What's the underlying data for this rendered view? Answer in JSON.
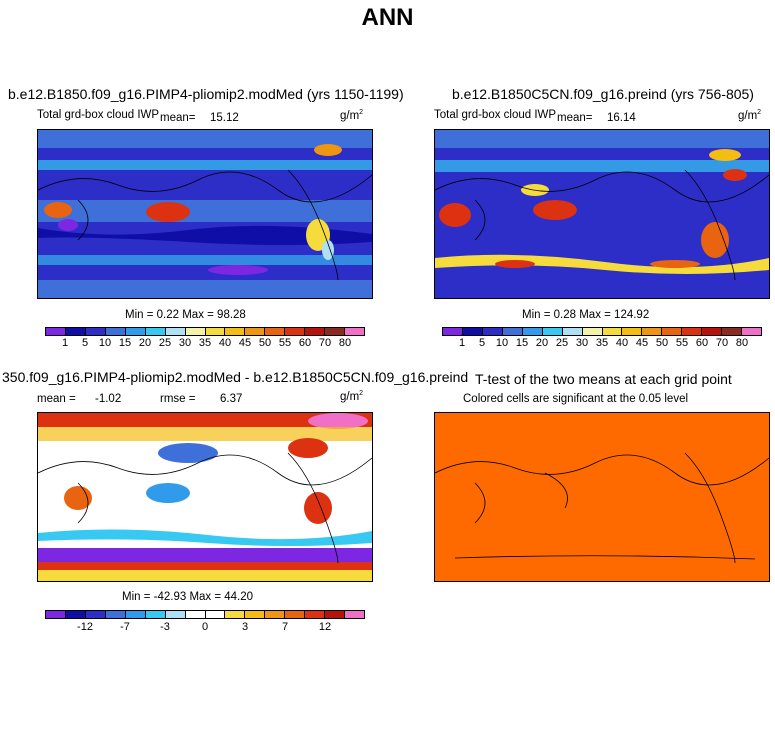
{
  "title": "ANN",
  "units": "g/m",
  "units_sup": "2",
  "colors": {
    "seq": [
      "#7d27e3",
      "#0f0fa8",
      "#2d2dc8",
      "#3f6fd8",
      "#2f9bea",
      "#37c9f2",
      "#aee0f4",
      "#f2f2a8",
      "#f5dc3c",
      "#f3bd12",
      "#ee9612",
      "#e86410",
      "#dc3212",
      "#b8120c",
      "#8c2a20",
      "#f070c8"
    ],
    "div": [
      "#7d27e3",
      "#0f0fa8",
      "#2d2dc8",
      "#3f6fd8",
      "#2f9bea",
      "#37c9f2",
      "#aee0f4",
      "#ffffff",
      "#ffffff",
      "#f5dc3c",
      "#f3bd12",
      "#ee9612",
      "#e86410",
      "#dc3212",
      "#b8120c",
      "#f070c8"
    ],
    "ttest": "#ff6a00"
  },
  "chart_data": [
    {
      "type": "heatmap",
      "title": "b.e12.B1850.f09_g16.PIMP4-pliomip2.modMed (yrs 1150-1199)",
      "subtitle": "Total grd-box cloud IWP",
      "mean_label": "mean=",
      "mean": "15.12",
      "stats_label": "Min =    0.22  Max =   98.28",
      "min": 0.22,
      "max": 98.28,
      "colorbar_labels": [
        "1",
        "5",
        "10",
        "15",
        "20",
        "25",
        "30",
        "35",
        "40",
        "45",
        "50",
        "55",
        "60",
        "70",
        "80"
      ]
    },
    {
      "type": "heatmap",
      "title": "b.e12.B1850C5CN.f09_g16.preind (yrs 756-805)",
      "subtitle": "Total grd-box cloud IWP",
      "mean_label": "mean=",
      "mean": "16.14",
      "stats_label": "Min =    0.28  Max =  124.92",
      "min": 0.28,
      "max": 124.92,
      "colorbar_labels": [
        "1",
        "5",
        "10",
        "15",
        "20",
        "25",
        "30",
        "35",
        "40",
        "45",
        "50",
        "55",
        "60",
        "70",
        "80"
      ]
    },
    {
      "type": "heatmap",
      "title": "350.f09_g16.PIMP4-pliomip2.modMed - b.e12.B1850C5CN.f09_g16.preind",
      "mean_label": "mean =",
      "mean": "-1.02",
      "rmse_label": "rmse =",
      "rmse": "6.37",
      "stats_label": "Min = -42.93  Max =   44.20",
      "min": -42.93,
      "max": 44.2,
      "colorbar_labels": [
        "-12",
        "-7",
        "-3",
        "0",
        "3",
        "7",
        "12"
      ]
    },
    {
      "type": "heatmap",
      "title": "T-test of the two means at each grid point",
      "subtitle": "Colored cells are significant at the 0.05 level"
    }
  ]
}
